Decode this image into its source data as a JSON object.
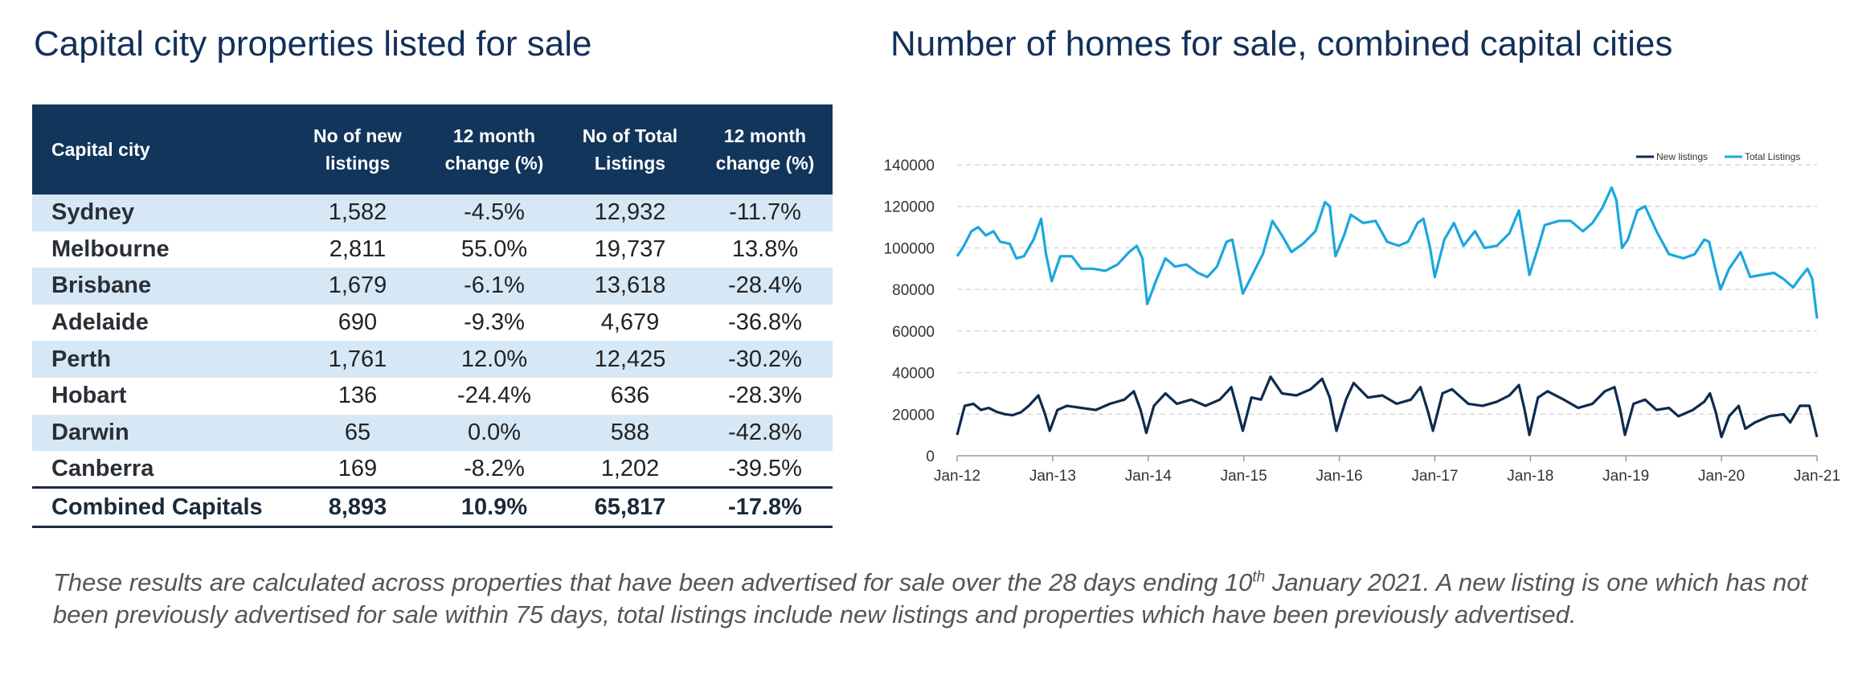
{
  "left_title": "Capital city properties listed for sale",
  "right_title": "Number of homes for sale, combined capital cities",
  "table": {
    "headers": [
      "Capital city",
      "No of new listings",
      "12 month change (%)",
      "No of Total Listings",
      "12 month change (%)"
    ],
    "header_lines": [
      [
        "Capital city"
      ],
      [
        "No of new",
        "listings"
      ],
      [
        "12 month",
        "change (%)"
      ],
      [
        "No of Total",
        "Listings"
      ],
      [
        "12 month",
        "change (%)"
      ]
    ],
    "rows": [
      [
        "Sydney",
        "1,582",
        "-4.5%",
        "12,932",
        "-11.7%"
      ],
      [
        "Melbourne",
        "2,811",
        "55.0%",
        "19,737",
        "13.8%"
      ],
      [
        "Brisbane",
        "1,679",
        "-6.1%",
        "13,618",
        "-28.4%"
      ],
      [
        "Adelaide",
        "690",
        "-9.3%",
        "4,679",
        "-36.8%"
      ],
      [
        "Perth",
        "1,761",
        "12.0%",
        "12,425",
        "-30.2%"
      ],
      [
        "Hobart",
        "136",
        "-24.4%",
        "636",
        "-28.3%"
      ],
      [
        "Darwin",
        "65",
        "0.0%",
        "588",
        "-42.8%"
      ],
      [
        "Canberra",
        "169",
        "-8.2%",
        "1,202",
        "-39.5%"
      ]
    ],
    "total": [
      "Combined Capitals",
      "8,893",
      "10.9%",
      "65,817",
      "-17.8%"
    ]
  },
  "colors": {
    "header_bg": "#12355b",
    "row_shade": "#d6e8f6",
    "new_listings": "#0d2b4e",
    "total_listings": "#1aa7de",
    "title": "#12305a",
    "gridline": "#d9d9d9"
  },
  "chart_data": {
    "type": "line",
    "title": "Number of homes for sale, combined capital cities",
    "xlabel": "",
    "ylabel": "",
    "x_tick_labels": [
      "Jan-12",
      "Jan-13",
      "Jan-14",
      "Jan-15",
      "Jan-16",
      "Jan-17",
      "Jan-18",
      "Jan-19",
      "Jan-20",
      "Jan-21"
    ],
    "y_tick_labels": [
      "0",
      "20000",
      "40000",
      "60000",
      "80000",
      "100000",
      "120000",
      "140000"
    ],
    "ylim": [
      0,
      140000
    ],
    "grid": "horizontal dashed",
    "legend_position": "top-right",
    "x_unit": "year",
    "series": [
      {
        "name": "New listings",
        "color": "#0d2b4e",
        "points": [
          [
            2012.0,
            10000
          ],
          [
            2012.08,
            24000
          ],
          [
            2012.17,
            25000
          ],
          [
            2012.25,
            22000
          ],
          [
            2012.33,
            23000
          ],
          [
            2012.42,
            21000
          ],
          [
            2012.5,
            20000
          ],
          [
            2012.58,
            19500
          ],
          [
            2012.67,
            21000
          ],
          [
            2012.75,
            24000
          ],
          [
            2012.85,
            29000
          ],
          [
            2012.92,
            20000
          ],
          [
            2012.97,
            12000
          ],
          [
            2013.05,
            22000
          ],
          [
            2013.15,
            24000
          ],
          [
            2013.3,
            23000
          ],
          [
            2013.45,
            22000
          ],
          [
            2013.6,
            25000
          ],
          [
            2013.75,
            27000
          ],
          [
            2013.85,
            31000
          ],
          [
            2013.92,
            22000
          ],
          [
            2013.98,
            11000
          ],
          [
            2014.06,
            24000
          ],
          [
            2014.18,
            30000
          ],
          [
            2014.3,
            25000
          ],
          [
            2014.45,
            27000
          ],
          [
            2014.6,
            24000
          ],
          [
            2014.75,
            27000
          ],
          [
            2014.87,
            33000
          ],
          [
            2014.94,
            21000
          ],
          [
            2014.99,
            12000
          ],
          [
            2015.08,
            28000
          ],
          [
            2015.18,
            27000
          ],
          [
            2015.28,
            38000
          ],
          [
            2015.4,
            30000
          ],
          [
            2015.55,
            29000
          ],
          [
            2015.7,
            32000
          ],
          [
            2015.82,
            37000
          ],
          [
            2015.9,
            28000
          ],
          [
            2015.97,
            12000
          ],
          [
            2016.07,
            27000
          ],
          [
            2016.15,
            35000
          ],
          [
            2016.3,
            28000
          ],
          [
            2016.45,
            29000
          ],
          [
            2016.6,
            25000
          ],
          [
            2016.75,
            27000
          ],
          [
            2016.85,
            33000
          ],
          [
            2016.93,
            21000
          ],
          [
            2016.98,
            12000
          ],
          [
            2017.08,
            30000
          ],
          [
            2017.18,
            32000
          ],
          [
            2017.35,
            25000
          ],
          [
            2017.5,
            24000
          ],
          [
            2017.65,
            26000
          ],
          [
            2017.78,
            29000
          ],
          [
            2017.88,
            34000
          ],
          [
            2017.94,
            22000
          ],
          [
            2017.99,
            10000
          ],
          [
            2018.08,
            28000
          ],
          [
            2018.18,
            31000
          ],
          [
            2018.35,
            27000
          ],
          [
            2018.5,
            23000
          ],
          [
            2018.65,
            25000
          ],
          [
            2018.78,
            31000
          ],
          [
            2018.88,
            33000
          ],
          [
            2018.94,
            22000
          ],
          [
            2018.99,
            10000
          ],
          [
            2019.08,
            25000
          ],
          [
            2019.2,
            27000
          ],
          [
            2019.32,
            22000
          ],
          [
            2019.45,
            23000
          ],
          [
            2019.55,
            19000
          ],
          [
            2019.7,
            22000
          ],
          [
            2019.82,
            26000
          ],
          [
            2019.88,
            30000
          ],
          [
            2019.94,
            21000
          ],
          [
            2020.0,
            9000
          ],
          [
            2020.08,
            19000
          ],
          [
            2020.18,
            24000
          ],
          [
            2020.25,
            13000
          ],
          [
            2020.35,
            16000
          ],
          [
            2020.5,
            19000
          ],
          [
            2020.65,
            20000
          ],
          [
            2020.72,
            16000
          ],
          [
            2020.82,
            24000
          ],
          [
            2020.92,
            24000
          ],
          [
            2021.0,
            9000
          ]
        ]
      },
      {
        "name": "Total Listings",
        "color": "#1aa7de",
        "points": [
          [
            2012.0,
            96000
          ],
          [
            2012.06,
            100000
          ],
          [
            2012.15,
            108000
          ],
          [
            2012.22,
            110000
          ],
          [
            2012.3,
            106000
          ],
          [
            2012.38,
            108000
          ],
          [
            2012.45,
            103000
          ],
          [
            2012.55,
            102000
          ],
          [
            2012.62,
            95000
          ],
          [
            2012.7,
            96000
          ],
          [
            2012.8,
            104000
          ],
          [
            2012.88,
            114000
          ],
          [
            2012.93,
            97000
          ],
          [
            2012.99,
            84000
          ],
          [
            2013.08,
            96000
          ],
          [
            2013.2,
            96000
          ],
          [
            2013.3,
            90000
          ],
          [
            2013.42,
            90000
          ],
          [
            2013.55,
            89000
          ],
          [
            2013.68,
            92000
          ],
          [
            2013.8,
            98000
          ],
          [
            2013.88,
            101000
          ],
          [
            2013.94,
            95000
          ],
          [
            2013.99,
            73000
          ],
          [
            2014.08,
            84000
          ],
          [
            2014.18,
            95000
          ],
          [
            2014.28,
            91000
          ],
          [
            2014.4,
            92000
          ],
          [
            2014.52,
            88000
          ],
          [
            2014.62,
            86000
          ],
          [
            2014.72,
            91000
          ],
          [
            2014.82,
            103000
          ],
          [
            2014.88,
            104000
          ],
          [
            2014.94,
            90000
          ],
          [
            2014.99,
            78000
          ],
          [
            2015.1,
            88000
          ],
          [
            2015.2,
            97000
          ],
          [
            2015.3,
            113000
          ],
          [
            2015.4,
            106000
          ],
          [
            2015.5,
            98000
          ],
          [
            2015.62,
            102000
          ],
          [
            2015.75,
            108000
          ],
          [
            2015.85,
            122000
          ],
          [
            2015.9,
            120000
          ],
          [
            2015.96,
            96000
          ],
          [
            2016.05,
            106000
          ],
          [
            2016.12,
            116000
          ],
          [
            2016.25,
            112000
          ],
          [
            2016.38,
            113000
          ],
          [
            2016.5,
            103000
          ],
          [
            2016.62,
            101000
          ],
          [
            2016.72,
            103000
          ],
          [
            2016.82,
            112000
          ],
          [
            2016.88,
            114000
          ],
          [
            2016.95,
            100000
          ],
          [
            2017.0,
            86000
          ],
          [
            2017.1,
            104000
          ],
          [
            2017.2,
            112000
          ],
          [
            2017.3,
            101000
          ],
          [
            2017.42,
            108000
          ],
          [
            2017.52,
            100000
          ],
          [
            2017.65,
            101000
          ],
          [
            2017.78,
            107000
          ],
          [
            2017.88,
            118000
          ],
          [
            2017.93,
            104000
          ],
          [
            2017.99,
            87000
          ],
          [
            2018.08,
            100000
          ],
          [
            2018.15,
            111000
          ],
          [
            2018.3,
            113000
          ],
          [
            2018.42,
            113000
          ],
          [
            2018.55,
            108000
          ],
          [
            2018.65,
            112000
          ],
          [
            2018.75,
            119000
          ],
          [
            2018.85,
            129000
          ],
          [
            2018.9,
            123000
          ],
          [
            2018.96,
            100000
          ],
          [
            2019.02,
            104000
          ],
          [
            2019.12,
            118000
          ],
          [
            2019.2,
            120000
          ],
          [
            2019.32,
            108000
          ],
          [
            2019.45,
            97000
          ],
          [
            2019.6,
            95000
          ],
          [
            2019.72,
            97000
          ],
          [
            2019.82,
            104000
          ],
          [
            2019.87,
            103000
          ],
          [
            2019.93,
            91000
          ],
          [
            2019.99,
            80000
          ],
          [
            2020.08,
            90000
          ],
          [
            2020.2,
            98000
          ],
          [
            2020.3,
            86000
          ],
          [
            2020.42,
            87000
          ],
          [
            2020.55,
            88000
          ],
          [
            2020.65,
            85000
          ],
          [
            2020.75,
            81000
          ],
          [
            2020.83,
            86000
          ],
          [
            2020.9,
            90000
          ],
          [
            2020.95,
            85000
          ],
          [
            2021.0,
            66000
          ]
        ]
      }
    ]
  },
  "note": {
    "part1": "These results are calculated across properties that have been advertised for sale over the 28 days ending 10",
    "sup": "th",
    "part2": " January 2021.  A new listing is one which has not been previously advertised for sale within 75 days, total listings include new listings and properties which have been previously advertised."
  }
}
